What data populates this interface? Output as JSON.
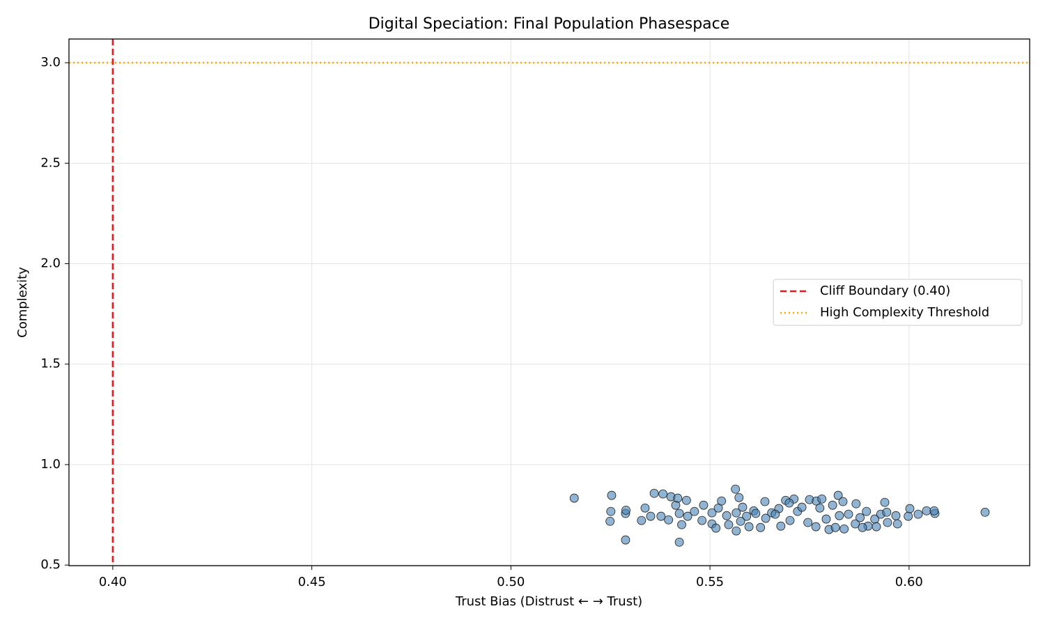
{
  "chart_data": {
    "type": "scatter",
    "title": "Digital Speciation: Final Population Phasespace",
    "xlabel": "Trust Bias (Distrust ← → Trust)",
    "ylabel": "Complexity",
    "xlim": [
      0.389,
      0.6303
    ],
    "ylim": [
      0.497,
      3.118
    ],
    "xticks": [
      {
        "value": 0.4,
        "label": "0.40"
      },
      0.45,
      {
        "value": 0.5,
        "label": "0.50"
      },
      0.55,
      {
        "value": 0.6,
        "label": "0.60"
      }
    ],
    "yticks": [
      0.5,
      {
        "value": 1,
        "label": "1.0"
      },
      1.5,
      {
        "value": 2,
        "label": "2.0"
      },
      2.5,
      {
        "value": 3,
        "label": "3.0"
      }
    ],
    "grid": true,
    "legend": "center right",
    "color": "#4682b4",
    "edgecolor": "#1a1a1a",
    "x": [
      0.5159,
      0.5253,
      0.5251,
      0.5249,
      0.5288,
      0.5288,
      0.5289,
      0.5328,
      0.5337,
      0.536,
      0.5382,
      0.5351,
      0.5377,
      0.5402,
      0.5396,
      0.5414,
      0.5419,
      0.5423,
      0.5423,
      0.5429,
      0.5441,
      0.5444,
      0.5461,
      0.5484,
      0.548,
      0.5505,
      0.5505,
      0.5521,
      0.5529,
      0.5542,
      0.5547,
      0.5564,
      0.5573,
      0.5566,
      0.5566,
      0.5582,
      0.5592,
      0.5598,
      0.561,
      0.5627,
      0.5638,
      0.564,
      0.5655,
      0.5673,
      0.5678,
      0.569,
      0.5701,
      0.5711,
      0.572,
      0.5731,
      0.5746,
      0.575,
      0.5766,
      0.5767,
      0.5781,
      0.5792,
      0.5799,
      0.5808,
      0.5822,
      0.5825,
      0.5834,
      0.5837,
      0.5848,
      0.5865,
      0.5867,
      0.5877,
      0.5893,
      0.5897,
      0.5914,
      0.5918,
      0.5929,
      0.5939,
      0.5944,
      0.5946,
      0.5967,
      0.5971,
      0.5998,
      0.6002,
      0.6023,
      0.6044,
      0.6065,
      0.6063,
      0.6191,
      0.5577,
      0.5664,
      0.5699,
      0.5776,
      0.5815,
      0.5883,
      0.5515,
      0.5615
    ],
    "y": [
      0.833,
      0.847,
      0.767,
      0.718,
      0.625,
      0.757,
      0.773,
      0.722,
      0.784,
      0.857,
      0.854,
      0.743,
      0.743,
      0.84,
      0.725,
      0.798,
      0.833,
      0.614,
      0.757,
      0.701,
      0.822,
      0.743,
      0.767,
      0.798,
      0.722,
      0.705,
      0.76,
      0.784,
      0.819,
      0.746,
      0.701,
      0.878,
      0.836,
      0.67,
      0.76,
      0.788,
      0.743,
      0.691,
      0.77,
      0.687,
      0.816,
      0.733,
      0.76,
      0.781,
      0.694,
      0.822,
      0.722,
      0.829,
      0.767,
      0.788,
      0.712,
      0.826,
      0.691,
      0.819,
      0.829,
      0.729,
      0.677,
      0.798,
      0.847,
      0.746,
      0.816,
      0.68,
      0.753,
      0.705,
      0.805,
      0.736,
      0.767,
      0.694,
      0.729,
      0.691,
      0.753,
      0.812,
      0.763,
      0.712,
      0.746,
      0.705,
      0.743,
      0.781,
      0.753,
      0.77,
      0.757,
      0.77,
      0.763,
      0.718,
      0.753,
      0.809,
      0.784,
      0.687,
      0.687,
      0.684,
      0.757
    ],
    "reference_lines": [
      {
        "label": "Cliff Boundary (0.40)",
        "orientation": "vertical",
        "value": 0.4,
        "color": "#e41a1c",
        "style": "dashed"
      },
      {
        "label": "High Complexity Threshold",
        "orientation": "horizontal",
        "value": 3.0,
        "color": "#ffa500",
        "style": "dotted"
      }
    ]
  }
}
